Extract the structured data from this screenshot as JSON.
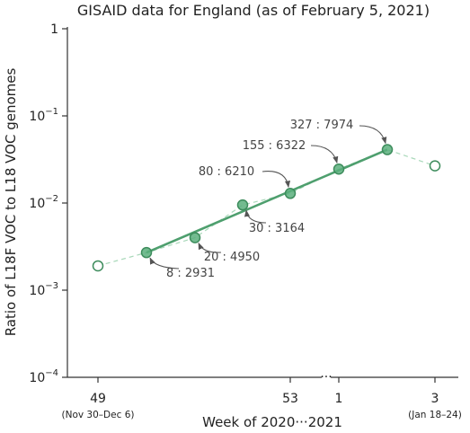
{
  "chart_data": {
    "type": "scatter",
    "title": "GISAID data for England (as of February 5, 2021)",
    "xlabel": "Week of 2020···2021",
    "ylabel": "Ratio of L18F VOC to L18 VOC genomes",
    "yscale": "log",
    "ylim": [
      0.0001,
      1
    ],
    "y_ticks": [
      {
        "value": 0.0001,
        "base": "10",
        "exp": "−4"
      },
      {
        "value": 0.001,
        "base": "10",
        "exp": "−3"
      },
      {
        "value": 0.01,
        "base": "10",
        "exp": "−2"
      },
      {
        "value": 0.1,
        "base": "10",
        "exp": "−1"
      },
      {
        "value": 1,
        "base": "1",
        "exp": ""
      }
    ],
    "x_ticks": [
      {
        "pos": 0,
        "label": "49",
        "sublabel": "(Nov 30–Dec 6)"
      },
      {
        "pos": 4,
        "label": "53",
        "sublabel": ""
      },
      {
        "pos": 5,
        "label": "1",
        "sublabel": ""
      },
      {
        "pos": 7,
        "label": "3",
        "sublabel": "(Jan 18–24)"
      }
    ],
    "axis_break_label": "···",
    "observed": [
      {
        "x": 0,
        "y": 0.0019,
        "fit": false
      },
      {
        "x": 1,
        "y": 0.0027,
        "fit": true,
        "label": "8 : 2931"
      },
      {
        "x": 2,
        "y": 0.004,
        "fit": true,
        "label": "20 : 4950"
      },
      {
        "x": 3,
        "y": 0.0095,
        "fit": true,
        "label": "30 : 3164"
      },
      {
        "x": 4,
        "y": 0.0129,
        "fit": true,
        "label": "80 : 6210"
      },
      {
        "x": 5,
        "y": 0.0245,
        "fit": true,
        "label": "155 : 6322"
      },
      {
        "x": 6,
        "y": 0.041,
        "fit": true,
        "label": "327 : 7974"
      },
      {
        "x": 7,
        "y": 0.0267,
        "fit": false
      }
    ],
    "fit_line": {
      "x": [
        1,
        6
      ],
      "y": [
        0.0027,
        0.041
      ]
    },
    "colors": {
      "marker": "#5aaf7c",
      "marker_edge": "#3d8c5c",
      "fit_line": "#4e9f6e",
      "dashed_line": "#a8d8b9"
    }
  }
}
